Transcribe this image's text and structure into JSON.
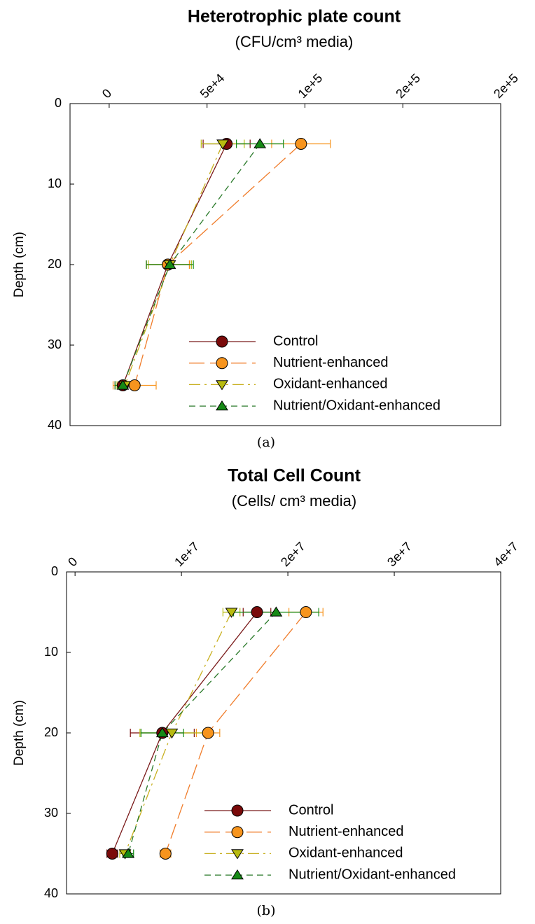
{
  "chart_data": [
    {
      "type": "line",
      "title": "Heterotrophic plate count",
      "subtitle": "(CFU/cm³ media)",
      "y_label": "Depth (cm)",
      "caption": "(a)",
      "xlim": [
        -20000,
        200000
      ],
      "xticks": [
        0,
        {
          "value": 50000,
          "label": "5e+4"
        },
        {
          "value": 100000,
          "label": "1e+5"
        },
        {
          "value": 150000,
          "label": "2e+5"
        },
        {
          "value": 200000,
          "label": "2e+5"
        }
      ],
      "ylim": [
        0,
        40
      ],
      "yticks": [
        0,
        10,
        20,
        30,
        40
      ],
      "y_inverted": true,
      "x_axis_position": "top",
      "legend": "lower right",
      "depths": [
        5,
        20,
        35
      ],
      "series": [
        {
          "name": "Control",
          "color": "#7a0a0a",
          "line_color": "#7a1a1a",
          "marker": "circle",
          "linestyle": "solid",
          "values": [
            60000,
            30000,
            7000
          ],
          "errors": [
            12000,
            11000,
            4000
          ]
        },
        {
          "name": "Nutrient-enhanced",
          "color": "#f7941d",
          "line_color": "#f07c2a",
          "marker": "circle",
          "linestyle": "longdash",
          "values": [
            98000,
            30000,
            13000
          ],
          "errors": [
            15000,
            11000,
            11000
          ]
        },
        {
          "name": "Oxidant-enhanced",
          "color": "#b8bb10",
          "line_color": "#c8b020",
          "marker": "triangle-down",
          "linestyle": "dashdot",
          "values": [
            58000,
            31000,
            8000
          ],
          "errors": [
            11000,
            11000,
            4000
          ]
        },
        {
          "name": "Nutrient/Oxidant-enhanced",
          "color": "#168a16",
          "line_color": "#2a7a2a",
          "marker": "triangle-up",
          "linestyle": "dashed",
          "values": [
            77000,
            31000,
            7000
          ],
          "errors": [
            12000,
            12000,
            4000
          ]
        }
      ]
    },
    {
      "type": "line",
      "title": "Total Cell Count",
      "subtitle": "(Cells/ cm³ media)",
      "y_label": "Depth (cm)",
      "caption": "(b)",
      "xlim": [
        -800000,
        40000000
      ],
      "xticks": [
        0,
        {
          "value": 10000000,
          "label": "1e+7"
        },
        {
          "value": 20000000,
          "label": "2e+7"
        },
        {
          "value": 30000000,
          "label": "3e+7"
        },
        {
          "value": 40000000,
          "label": "4e+7"
        }
      ],
      "ylim": [
        0,
        40
      ],
      "yticks": [
        0,
        10,
        20,
        30,
        40
      ],
      "y_inverted": true,
      "x_axis_position": "top",
      "legend": "lower right",
      "depths": [
        5,
        20,
        35
      ],
      "series": [
        {
          "name": "Control",
          "color": "#7a0a0a",
          "line_color": "#7a1a1a",
          "marker": "circle",
          "linestyle": "solid",
          "values": [
            17100000,
            8200000,
            3500000
          ],
          "errors": [
            1300000,
            3000000,
            500000
          ]
        },
        {
          "name": "Nutrient-enhanced",
          "color": "#f7941d",
          "line_color": "#f07c2a",
          "marker": "circle",
          "linestyle": "longdash",
          "values": [
            21700000,
            12500000,
            8500000
          ],
          "errors": [
            1600000,
            1100000,
            500000
          ]
        },
        {
          "name": "Oxidant-enhanced",
          "color": "#b8bb10",
          "line_color": "#c8b020",
          "marker": "triangle-down",
          "linestyle": "dashdot",
          "values": [
            14700000,
            9100000,
            4700000
          ],
          "errors": [
            800000,
            3000000,
            500000
          ]
        },
        {
          "name": "Nutrient/Oxidant-enhanced",
          "color": "#168a16",
          "line_color": "#2a7a2a",
          "marker": "triangle-up",
          "linestyle": "dashed",
          "values": [
            18900000,
            8200000,
            5000000
          ],
          "errors": [
            4000000,
            2000000,
            500000
          ]
        }
      ]
    }
  ]
}
